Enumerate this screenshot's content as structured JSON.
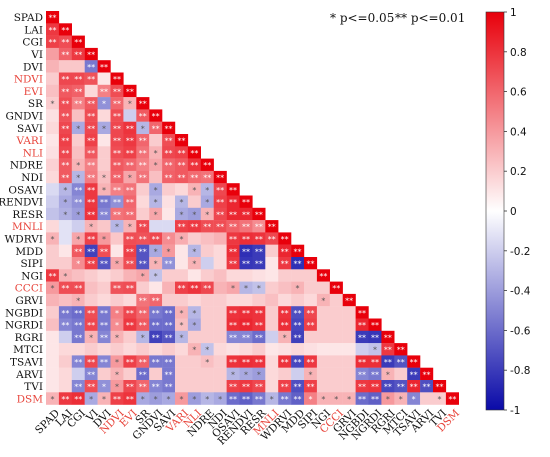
{
  "chart_data": {
    "type": "heatmap",
    "layout": "lower-triangle",
    "variables": [
      "SPAD",
      "LAI",
      "CGI",
      "VI",
      "DVI",
      "NDVI",
      "EVI",
      "SR",
      "GNDVI",
      "SAVI",
      "VARI",
      "NLI",
      "NDRE",
      "NDI",
      "OSAVI",
      "RENDVI",
      "RESR",
      "MNLI",
      "WDRVI",
      "MDD",
      "SIPI",
      "NGI",
      "CCCI",
      "GRVI",
      "NGBDI",
      "NGRDI",
      "RGRI",
      "MTCI",
      "TSAVI",
      "ARVI",
      "TVI",
      "DSM"
    ],
    "highlighted_variables": [
      "NDVI",
      "EVI",
      "VARI",
      "NLI",
      "MNLI",
      "CCCI",
      "DSM"
    ],
    "colors": {
      "positive": "#e8000b",
      "neutral": "#ffffff",
      "negative": "#0a0aa8",
      "highlight_text": "#e8453c",
      "text": "#111111"
    },
    "significance_note": {
      "single": "* p<=0.05",
      "double": "** p<=0.01"
    },
    "colorbar": {
      "min": -1,
      "max": 1,
      "ticks": [
        "1",
        "0.8",
        "0.6",
        "0.4",
        "0.2",
        "0",
        "-0.2",
        "-0.4",
        "-0.6",
        "-0.8",
        "-1"
      ]
    },
    "matrix": [
      [
        1
      ],
      [
        0.78,
        1
      ],
      [
        0.75,
        0.7,
        1
      ],
      [
        0.38,
        0.62,
        0.78,
        1
      ],
      [
        0.3,
        0.22,
        0.22,
        -0.55,
        1
      ],
      [
        0.2,
        0.72,
        0.72,
        0.68,
        0.1,
        1
      ],
      [
        0.25,
        0.65,
        0.62,
        0.15,
        0.5,
        0.7,
        1
      ],
      [
        0.2,
        0.7,
        0.5,
        0.65,
        -0.45,
        0.6,
        0.3,
        1
      ],
      [
        0.12,
        0.68,
        0.25,
        0.7,
        0.15,
        0.7,
        -0.2,
        0.65,
        1
      ],
      [
        0.15,
        0.72,
        -0.35,
        0.72,
        -0.35,
        0.72,
        0.8,
        -0.3,
        0.6,
        1
      ],
      [
        0.1,
        0.75,
        0.2,
        0.75,
        0.1,
        0.72,
        0.78,
        0.6,
        0.2,
        0.7,
        1
      ],
      [
        0.12,
        0.72,
        0.25,
        0.65,
        0.2,
        0.7,
        0.75,
        0.55,
        0.3,
        0.72,
        0.75,
        1
      ],
      [
        0.18,
        0.65,
        0.3,
        0.5,
        0.2,
        0.65,
        0.6,
        0.5,
        0.35,
        0.6,
        0.65,
        0.8,
        1
      ],
      [
        0.15,
        0.65,
        -0.3,
        0.52,
        0.25,
        0.62,
        0.35,
        0.55,
        0.25,
        0.62,
        0.65,
        0.58,
        0.55,
        1
      ],
      [
        -0.15,
        -0.3,
        -0.5,
        0.78,
        0.3,
        0.5,
        0.55,
        0.2,
        -0.35,
        0.2,
        0.15,
        0.3,
        -0.3,
        0.72,
        1
      ],
      [
        -0.2,
        -0.35,
        -0.45,
        0.78,
        -0.55,
        -0.45,
        0.6,
        0.15,
        -0.3,
        0.12,
        -0.3,
        0.2,
        -0.35,
        0.75,
        0.85,
        1
      ],
      [
        -0.25,
        -0.32,
        -0.4,
        0.8,
        -0.5,
        0.55,
        0.58,
        0.2,
        0.35,
        0.1,
        -0.35,
        -0.4,
        0.3,
        0.72,
        0.85,
        0.85,
        1
      ],
      [
        0.15,
        -0.12,
        -0.2,
        0.3,
        0.22,
        -0.3,
        0.3,
        0.72,
        -0.15,
        -0.15,
        0.75,
        0.78,
        0.7,
        0.7,
        0.62,
        0.55,
        0.45,
        1
      ],
      [
        0.3,
        -0.12,
        0.35,
        0.75,
        0.4,
        0.22,
        0.7,
        0.68,
        0.72,
        0.45,
        0.32,
        0.2,
        0.25,
        0.3,
        0.78,
        0.82,
        0.8,
        0.72,
        1
      ],
      [
        0.2,
        0.1,
        0.65,
        -0.78,
        0.7,
        0.1,
        0.75,
        -0.7,
        -0.35,
        0.4,
        0.1,
        -0.3,
        0.2,
        0.15,
        0.82,
        -0.85,
        -0.8,
        0.2,
        0.85,
        1
      ],
      [
        0.2,
        0.2,
        0.45,
        0.75,
        -0.7,
        0.35,
        0.7,
        -0.7,
        0.3,
        -0.45,
        0.1,
        0.3,
        -0.2,
        0.15,
        0.78,
        -0.82,
        -0.8,
        0.1,
        0.78,
        -0.85,
        1
      ],
      [
        0.78,
        0.3,
        0.25,
        0.2,
        0.15,
        0.2,
        0.3,
        0.35,
        -0.25,
        0.2,
        0.2,
        0.1,
        0.2,
        0.25,
        0.15,
        0.15,
        0.12,
        0.1,
        0.2,
        0.2,
        0.2,
        1
      ],
      [
        0.4,
        0.7,
        0.7,
        0.25,
        0.2,
        0.68,
        0.7,
        0.2,
        0.1,
        0.3,
        0.75,
        0.8,
        0.72,
        0.3,
        0.35,
        -0.3,
        -0.25,
        0.2,
        0.25,
        0.3,
        0.2,
        0.2,
        1
      ],
      [
        0.3,
        0.25,
        0.3,
        0.2,
        0.15,
        0.2,
        0.15,
        0.55,
        0.6,
        0.2,
        0.2,
        0.15,
        0.2,
        0.2,
        0.15,
        0.15,
        0.2,
        0.25,
        0.15,
        0.2,
        0.15,
        0.3,
        0.2,
        1
      ],
      [
        0.2,
        -0.55,
        -0.6,
        0.7,
        -0.55,
        0.5,
        0.72,
        0.6,
        -0.55,
        -0.6,
        0.3,
        -0.3,
        0.2,
        0.2,
        0.8,
        0.82,
        0.8,
        0.2,
        0.8,
        -0.72,
        0.72,
        0.2,
        0.2,
        0.2,
        1
      ],
      [
        0.25,
        -0.5,
        -0.55,
        0.72,
        -0.55,
        0.45,
        0.78,
        0.65,
        -0.6,
        -0.6,
        0.25,
        -0.35,
        0.2,
        0.2,
        0.82,
        0.85,
        0.8,
        0.2,
        0.82,
        -0.75,
        0.75,
        0.2,
        0.2,
        0.2,
        0.85,
        1
      ],
      [
        0.1,
        -0.2,
        -0.55,
        0.3,
        -0.5,
        0.3,
        0.2,
        -0.3,
        -0.78,
        -0.7,
        -0.3,
        0.2,
        0.2,
        0.2,
        -0.5,
        -0.5,
        -0.6,
        -0.2,
        0.3,
        -0.78,
        0.2,
        0.2,
        0.2,
        0.2,
        -0.8,
        -0.82,
        1
      ],
      [
        0.1,
        0.15,
        0.15,
        0.2,
        0.15,
        0.2,
        0.15,
        0.2,
        0.15,
        0.2,
        0.15,
        0.3,
        -0.25,
        0.15,
        0.12,
        0.15,
        0.2,
        0.1,
        0.12,
        0.15,
        0.12,
        0.1,
        0.1,
        0.1,
        -0.2,
        -0.25,
        0.78,
        1
      ],
      [
        0.1,
        0.2,
        -0.5,
        0.72,
        -0.5,
        0.4,
        0.75,
        0.62,
        -0.55,
        -0.55,
        0.2,
        0.2,
        0.25,
        0.2,
        0.8,
        0.82,
        0.8,
        0.15,
        0.8,
        -0.75,
        0.78,
        0.2,
        0.2,
        0.2,
        0.82,
        0.82,
        -0.8,
        -0.7,
        1
      ],
      [
        0.1,
        0.15,
        -0.2,
        -0.5,
        0.2,
        0.3,
        0.2,
        -0.6,
        0.2,
        -0.55,
        0.2,
        0.2,
        0.2,
        0.2,
        -0.3,
        -0.35,
        -0.4,
        0.15,
        0.2,
        -0.2,
        0.3,
        0.2,
        0.2,
        0.2,
        -0.5,
        -0.55,
        0.3,
        0.2,
        -0.8,
        1
      ],
      [
        0.1,
        0.15,
        -0.5,
        0.7,
        -0.45,
        0.4,
        0.72,
        0.6,
        -0.5,
        -0.55,
        0.2,
        0.2,
        0.2,
        0.2,
        0.75,
        0.78,
        0.72,
        0.15,
        0.75,
        -0.72,
        0.75,
        0.2,
        0.2,
        0.2,
        0.78,
        0.8,
        -0.75,
        -0.7,
        0.85,
        -0.72,
        1
      ],
      [
        0.3,
        0.78,
        0.82,
        -0.35,
        0.3,
        0.75,
        0.8,
        -0.35,
        -0.4,
        -0.35,
        0.4,
        -0.4,
        -0.3,
        -0.35,
        -0.6,
        -0.65,
        -0.55,
        -0.3,
        -0.55,
        -0.65,
        0.5,
        0.3,
        0.3,
        0.3,
        -0.6,
        -0.65,
        0.4,
        0.3,
        -0.5,
        0.2,
        0.2,
        1
      ]
    ],
    "significance": [
      [
        2
      ],
      [
        2,
        2
      ],
      [
        2,
        2,
        2
      ],
      [
        0,
        2,
        2,
        2
      ],
      [
        0,
        0,
        0,
        2,
        2
      ],
      [
        0,
        2,
        2,
        2,
        0,
        2
      ],
      [
        0,
        2,
        2,
        0,
        2,
        2,
        2
      ],
      [
        1,
        2,
        2,
        2,
        1,
        2,
        1,
        2
      ],
      [
        0,
        2,
        0,
        2,
        0,
        2,
        0,
        2,
        2
      ],
      [
        0,
        2,
        1,
        2,
        1,
        2,
        2,
        1,
        2,
        2
      ],
      [
        0,
        2,
        0,
        2,
        0,
        2,
        2,
        2,
        0,
        2,
        2
      ],
      [
        0,
        2,
        0,
        2,
        0,
        2,
        2,
        2,
        1,
        2,
        2,
        2
      ],
      [
        0,
        2,
        1,
        2,
        0,
        2,
        2,
        2,
        1,
        2,
        2,
        2,
        2
      ],
      [
        0,
        2,
        1,
        2,
        1,
        2,
        1,
        2,
        0,
        2,
        2,
        2,
        2,
        2
      ],
      [
        0,
        1,
        2,
        2,
        1,
        2,
        2,
        0,
        1,
        0,
        0,
        1,
        1,
        2,
        2
      ],
      [
        0,
        1,
        2,
        2,
        2,
        2,
        2,
        0,
        1,
        0,
        1,
        0,
        1,
        2,
        2,
        2
      ],
      [
        0,
        1,
        1,
        2,
        2,
        2,
        2,
        0,
        1,
        0,
        1,
        1,
        1,
        2,
        2,
        2,
        2
      ],
      [
        0,
        0,
        0,
        1,
        0,
        1,
        1,
        2,
        0,
        0,
        2,
        2,
        2,
        2,
        2,
        2,
        2,
        2
      ],
      [
        1,
        0,
        1,
        2,
        1,
        0,
        2,
        2,
        2,
        1,
        1,
        0,
        0,
        0,
        2,
        2,
        2,
        2,
        2
      ],
      [
        0,
        0,
        2,
        2,
        2,
        0,
        2,
        2,
        1,
        1,
        0,
        1,
        0,
        0,
        2,
        2,
        2,
        0,
        2,
        2
      ],
      [
        0,
        0,
        1,
        2,
        2,
        1,
        2,
        2,
        1,
        2,
        0,
        1,
        0,
        0,
        2,
        2,
        2,
        0,
        2,
        2,
        2
      ],
      [
        2,
        1,
        0,
        0,
        0,
        0,
        0,
        1,
        1,
        0,
        0,
        0,
        0,
        0,
        0,
        0,
        0,
        0,
        0,
        0,
        0,
        2
      ],
      [
        1,
        2,
        2,
        0,
        0,
        2,
        2,
        0,
        0,
        0,
        2,
        2,
        2,
        0,
        1,
        1,
        1,
        0,
        0,
        1,
        0,
        0,
        2
      ],
      [
        0,
        0,
        1,
        0,
        0,
        0,
        0,
        2,
        2,
        0,
        0,
        0,
        0,
        0,
        0,
        0,
        0,
        0,
        0,
        0,
        0,
        1,
        0,
        2
      ],
      [
        0,
        2,
        2,
        2,
        2,
        1,
        2,
        2,
        2,
        2,
        1,
        1,
        0,
        0,
        2,
        2,
        2,
        0,
        2,
        2,
        2,
        0,
        0,
        0,
        2
      ],
      [
        0,
        2,
        2,
        2,
        2,
        1,
        2,
        2,
        2,
        2,
        1,
        1,
        0,
        0,
        2,
        2,
        2,
        0,
        2,
        2,
        2,
        0,
        0,
        0,
        2,
        2
      ],
      [
        0,
        0,
        2,
        1,
        2,
        1,
        0,
        1,
        2,
        2,
        1,
        0,
        0,
        0,
        2,
        2,
        2,
        0,
        1,
        2,
        0,
        0,
        0,
        0,
        2,
        2,
        2
      ],
      [
        0,
        0,
        0,
        0,
        0,
        0,
        0,
        0,
        0,
        0,
        0,
        1,
        1,
        0,
        0,
        0,
        0,
        0,
        0,
        0,
        0,
        0,
        0,
        0,
        0,
        1,
        2,
        2
      ],
      [
        0,
        0,
        2,
        2,
        2,
        1,
        2,
        2,
        2,
        2,
        0,
        0,
        1,
        0,
        2,
        2,
        2,
        0,
        2,
        2,
        2,
        0,
        0,
        0,
        2,
        2,
        2,
        2,
        2
      ],
      [
        0,
        0,
        0,
        2,
        0,
        1,
        0,
        2,
        0,
        2,
        0,
        0,
        0,
        0,
        1,
        1,
        1,
        0,
        0,
        0,
        1,
        0,
        0,
        0,
        2,
        2,
        1,
        0,
        2,
        2
      ],
      [
        0,
        0,
        2,
        2,
        1,
        1,
        2,
        2,
        2,
        2,
        0,
        0,
        0,
        0,
        2,
        2,
        2,
        0,
        2,
        2,
        2,
        0,
        0,
        0,
        2,
        2,
        2,
        2,
        2,
        2,
        2
      ],
      [
        1,
        2,
        2,
        1,
        1,
        2,
        2,
        1,
        1,
        1,
        1,
        1,
        1,
        1,
        2,
        2,
        2,
        1,
        2,
        2,
        1,
        1,
        1,
        1,
        2,
        2,
        1,
        1,
        1,
        0,
        1,
        2
      ]
    ]
  }
}
